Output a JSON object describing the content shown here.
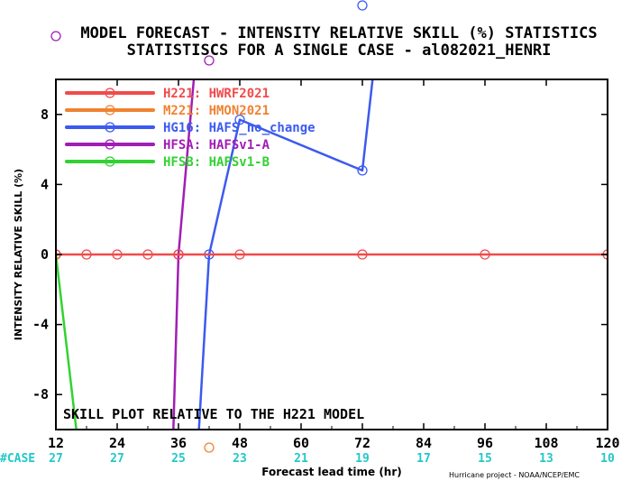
{
  "chart_data": {
    "type": "line",
    "title": "MODEL FORECAST - INTENSITY RELATIVE SKILL (%) STATISTICS",
    "subtitle": "STATISTISCS FOR A SINGLE CASE - al082021_HENRI",
    "xlabel": "Forecast lead time (hr)",
    "ylabel": "INTENSITY RELATIVE SKILL (%)",
    "xlim": [
      12,
      120
    ],
    "ylim": [
      -10,
      10
    ],
    "xticks": [
      12,
      24,
      36,
      48,
      60,
      72,
      84,
      96,
      108,
      120
    ],
    "yticks": [
      -8,
      -4,
      0,
      4,
      8
    ],
    "grid": false,
    "legend_position": "top-left",
    "annotation": "SKILL PLOT RELATIVE TO THE H221 MODEL",
    "case_label": "#CASE",
    "case_counts": [
      "27",
      "27",
      "25",
      "23",
      "21",
      "19",
      "17",
      "15",
      "13",
      "10"
    ],
    "credit": "Hurricane project - NOAA/NCEP/EMC",
    "series": [
      {
        "name": "H221: HWRF2021",
        "color": "#f04b4b",
        "x": [
          12,
          18,
          24,
          30,
          36,
          42,
          48,
          72,
          96,
          120
        ],
        "y": [
          0,
          0,
          0,
          0,
          0,
          0,
          0,
          0,
          0,
          0
        ],
        "markers_x": [
          12,
          18,
          24,
          30,
          36,
          48,
          72,
          96,
          120
        ]
      },
      {
        "name": "M221: HMON2021",
        "color": "#f08232",
        "x": [],
        "y": [],
        "markers_x": [],
        "below_axis_marker_x": 42
      },
      {
        "name": "HG16: HAFS_no_change",
        "color": "#3c5af0",
        "x": [
          40,
          42,
          48,
          72,
          74
        ],
        "y": [
          -10,
          0,
          7.7,
          4.8,
          10
        ],
        "markers_x": [
          42,
          48,
          72
        ],
        "above_plot_marker_x": 72
      },
      {
        "name": "HFSA: HAFSv1-A",
        "color": "#a01eb4",
        "x": [
          35,
          36,
          39
        ],
        "y": [
          -10,
          0,
          10
        ],
        "markers_x": [
          36
        ],
        "above_plot_marker_x": 42,
        "top_marker_x": 12
      },
      {
        "name": "HFSB: HAFSv1-B",
        "color": "#32d232",
        "x": [
          12,
          16
        ],
        "y": [
          0,
          -10
        ],
        "markers_x": [
          12
        ]
      }
    ]
  }
}
